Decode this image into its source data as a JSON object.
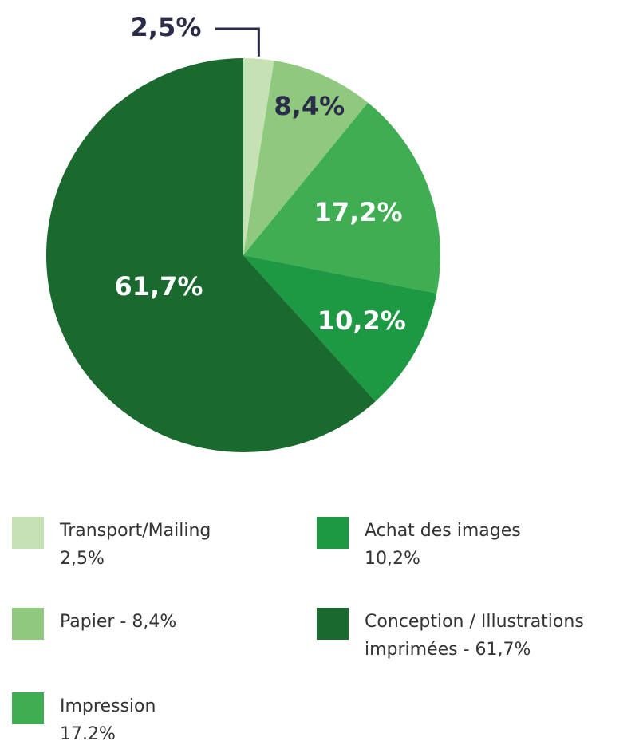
{
  "chart_data": {
    "type": "pie",
    "categories": [
      "Transport/Mailing",
      "Papier",
      "Impression",
      "Achat des images",
      "Conception / Illustrations imprimées"
    ],
    "values": [
      2.5,
      8.4,
      17.2,
      10.2,
      61.7
    ],
    "value_labels": [
      "2,5%",
      "8,4%",
      "17,2%",
      "10,2%",
      "61,7%"
    ],
    "colors": [
      "#c6e2b5",
      "#8ec97e",
      "#3fae52",
      "#1d9944",
      "#1a6a2f"
    ],
    "legend_lines": [
      [
        "Transport/Mailing",
        "2,5%"
      ],
      [
        "Papier - 8,4%"
      ],
      [
        "Impression",
        "17.2%"
      ],
      [
        "Achat des images",
        "10,2%"
      ],
      [
        "Conception / Illustrations",
        "imprimées - 61,7%"
      ]
    ]
  }
}
